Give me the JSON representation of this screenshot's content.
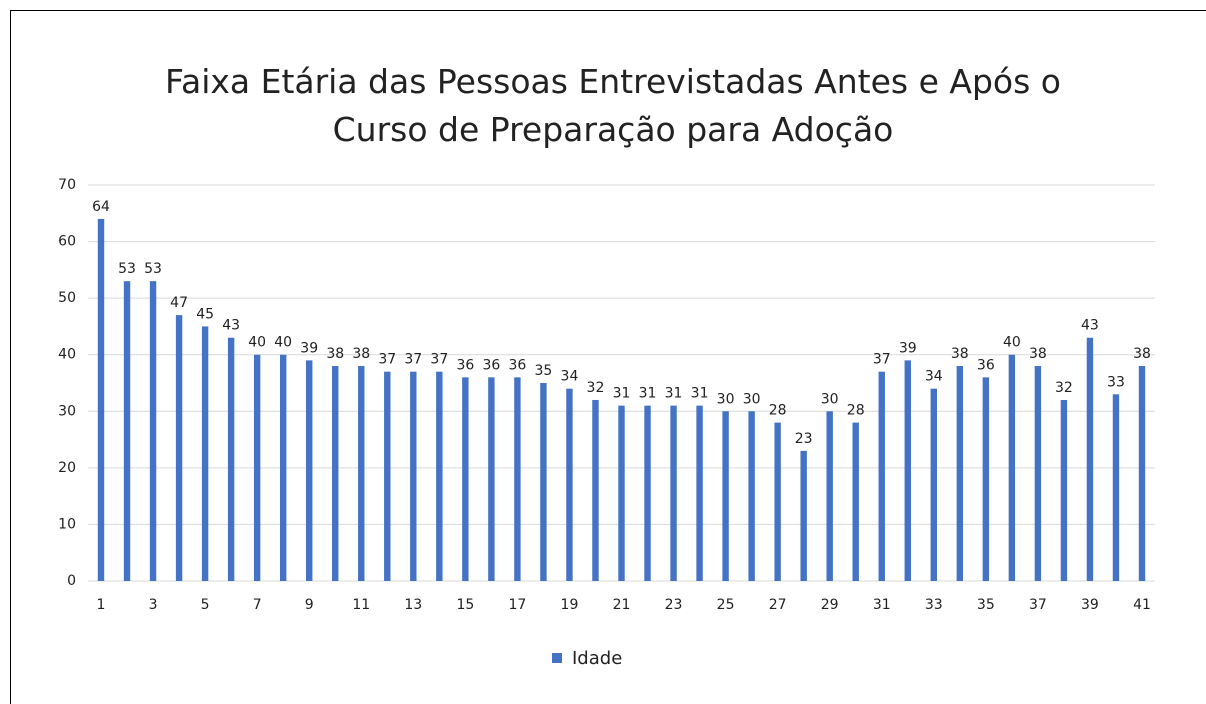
{
  "chart_data": {
    "type": "bar",
    "title": "Faixa Etária das Pessoas Entrevistadas Antes e Após o Curso de Preparação para Adoção",
    "categories": [
      1,
      null,
      3,
      null,
      5,
      null,
      7,
      null,
      9,
      null,
      11,
      null,
      13,
      null,
      15,
      null,
      17,
      null,
      19,
      null,
      21,
      null,
      23,
      null,
      25,
      null,
      27,
      null,
      29,
      null,
      31,
      null,
      33,
      null,
      35,
      null,
      37,
      null,
      39,
      null,
      41
    ],
    "series": [
      {
        "name": "Idade",
        "color": "#4472c4",
        "values": [
          64,
          53,
          53,
          47,
          45,
          43,
          40,
          40,
          39,
          38,
          38,
          37,
          37,
          37,
          36,
          36,
          36,
          35,
          34,
          32,
          31,
          31,
          31,
          31,
          30,
          30,
          28,
          23,
          30,
          28,
          37,
          39,
          34,
          38,
          36,
          40,
          38,
          32,
          43,
          33,
          38
        ]
      }
    ],
    "ylim": [
      0,
      70
    ],
    "yticks": [
      0,
      10,
      20,
      30,
      40,
      50,
      60,
      70
    ],
    "grid": true,
    "legend": "bottom"
  }
}
